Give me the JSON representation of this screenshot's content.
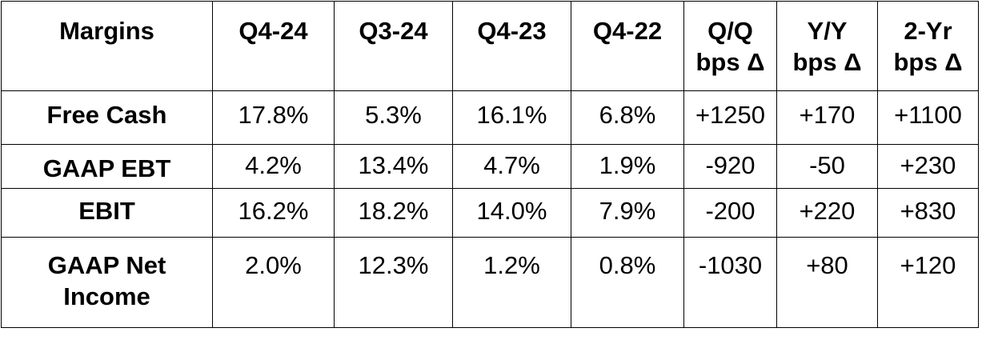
{
  "table": {
    "headers": [
      "Margins",
      "Q4-24",
      "Q3-24",
      "Q4-23",
      "Q4-22",
      "Q/Q\nbps Δ",
      "Y/Y\nbps Δ",
      "2-Yr\nbps Δ"
    ],
    "header_lines": [
      [
        "Margins"
      ],
      [
        "Q4-24"
      ],
      [
        "Q3-24"
      ],
      [
        "Q4-23"
      ],
      [
        "Q4-22"
      ],
      [
        "Q/Q",
        "bps Δ"
      ],
      [
        "Y/Y",
        "bps Δ"
      ],
      [
        "2-Yr",
        "bps Δ"
      ]
    ],
    "rows": [
      {
        "label_lines": [
          "Free Cash"
        ],
        "values": [
          "17.8%",
          "5.3%",
          "16.1%",
          "6.8%",
          "+1250",
          "+170",
          "+1100"
        ]
      },
      {
        "label_lines": [
          "GAAP EBT"
        ],
        "values": [
          "4.2%",
          "13.4%",
          "4.7%",
          "1.9%",
          "-920",
          "-50",
          "+230"
        ]
      },
      {
        "label_lines": [
          "EBIT"
        ],
        "values": [
          "16.2%",
          "18.2%",
          "14.0%",
          "7.9%",
          "-200",
          "+220",
          "+830"
        ]
      },
      {
        "label_lines": [
          "GAAP Net",
          "Income"
        ],
        "values": [
          "2.0%",
          "12.3%",
          "1.2%",
          "0.8%",
          "-1030",
          "+80",
          "+120"
        ]
      }
    ]
  }
}
